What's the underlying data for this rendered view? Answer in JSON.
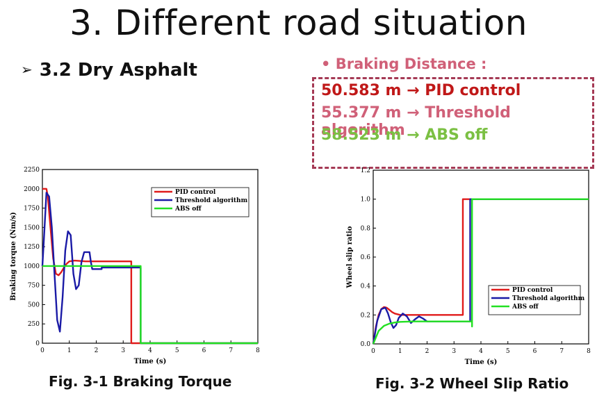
{
  "slide": {
    "title": "3. Different road situation",
    "subtitle_bullet": "➢",
    "subtitle": "3.2 Dry Asphalt",
    "braking_label": "• Braking Distance :",
    "braking": [
      {
        "value": "50.583 m",
        "arrow": "→",
        "label": "PID control"
      },
      {
        "value": "55.377 m",
        "arrow": "→",
        "label": "Threshold algorithm"
      },
      {
        "value": "58.523 m",
        "arrow": "→",
        "label": "ABS off"
      }
    ],
    "fig1_caption": "Fig. 3-1 Braking Torque",
    "fig2_caption": "Fig. 3-2 Wheel Slip Ratio"
  },
  "colors": {
    "pid": "#e01b1b",
    "threshold": "#1a1aa6",
    "abs_off": "#22e022"
  },
  "chart_data": [
    {
      "type": "line",
      "xlabel": "Time (s)",
      "ylabel": "Braking torque (Nm/s)",
      "xlim": [
        0,
        8
      ],
      "ylim": [
        0,
        2250
      ],
      "xticks": [
        "0",
        "1",
        "2",
        "3",
        "4",
        "5",
        "6",
        "7",
        "8"
      ],
      "yticks": [
        "0",
        "250",
        "500",
        "750",
        "1000",
        "1250",
        "1500",
        "1750",
        "2000",
        "2250"
      ],
      "legend": "top-right",
      "series": [
        {
          "name": "PID control",
          "color": "#e01b1b",
          "x": [
            0,
            0.15,
            0.2,
            0.3,
            0.4,
            0.5,
            0.6,
            0.7,
            0.8,
            0.9,
            1.0,
            1.2,
            1.6,
            2.0,
            2.5,
            3.0,
            3.3,
            3.3,
            3.7,
            8
          ],
          "y": [
            2000,
            2000,
            1900,
            1500,
            1100,
            900,
            880,
            920,
            980,
            1030,
            1060,
            1070,
            1060,
            1060,
            1060,
            1060,
            1060,
            0,
            0,
            0
          ]
        },
        {
          "name": "Threshold algorithm",
          "color": "#1a1aa6",
          "x": [
            0,
            0.05,
            0.15,
            0.25,
            0.35,
            0.45,
            0.55,
            0.65,
            0.75,
            0.85,
            0.95,
            1.05,
            1.15,
            1.25,
            1.35,
            1.45,
            1.55,
            1.65,
            1.75,
            1.8,
            1.85,
            1.95,
            2.05,
            2.2,
            2.2,
            2.6,
            3.0,
            3.4,
            3.65,
            3.65,
            8
          ],
          "y": [
            1000,
            1300,
            1950,
            1900,
            1500,
            900,
            300,
            150,
            600,
            1200,
            1450,
            1400,
            900,
            700,
            750,
            1050,
            1180,
            1180,
            1180,
            1050,
            960,
            960,
            960,
            960,
            980,
            980,
            980,
            980,
            980,
            0,
            0
          ]
        },
        {
          "name": "ABS off",
          "color": "#22e022",
          "x": [
            0,
            3.65,
            3.65,
            8
          ],
          "y": [
            1000,
            1000,
            0,
            0
          ]
        }
      ]
    },
    {
      "type": "line",
      "xlabel": "Time (s)",
      "ylabel": "Wheel slip ratio",
      "xlim": [
        0,
        8
      ],
      "ylim": [
        0,
        1.2
      ],
      "xticks": [
        "0",
        "1",
        "2",
        "3",
        "4",
        "5",
        "6",
        "7",
        "8"
      ],
      "yticks": [
        "0.0",
        "0.2",
        "0.4",
        "0.6",
        "0.8",
        "1.0",
        "1.2"
      ],
      "legend": "bottom-right",
      "series": [
        {
          "name": "PID control",
          "color": "#e01b1b",
          "x": [
            0,
            0.1,
            0.2,
            0.3,
            0.4,
            0.5,
            0.6,
            0.7,
            0.8,
            0.9,
            1.0,
            1.3,
            2.0,
            3.33,
            3.33,
            8
          ],
          "y": [
            0,
            0.12,
            0.2,
            0.24,
            0.255,
            0.25,
            0.235,
            0.22,
            0.21,
            0.205,
            0.2,
            0.2,
            0.2,
            0.2,
            1.0,
            1.0
          ]
        },
        {
          "name": "Threshold algorithm",
          "color": "#1a1aa6",
          "x": [
            0,
            0.15,
            0.3,
            0.45,
            0.55,
            0.65,
            0.75,
            0.85,
            0.95,
            1.1,
            1.25,
            1.4,
            1.55,
            1.7,
            1.85,
            2.0,
            2.2,
            2.6,
            3.0,
            3.6,
            3.6,
            8
          ],
          "y": [
            0,
            0.16,
            0.24,
            0.25,
            0.21,
            0.15,
            0.11,
            0.13,
            0.18,
            0.21,
            0.19,
            0.145,
            0.17,
            0.19,
            0.175,
            0.155,
            0.155,
            0.155,
            0.155,
            0.155,
            1.0,
            1.0
          ]
        },
        {
          "name": "ABS off",
          "color": "#22e022",
          "x": [
            0,
            0.2,
            0.4,
            0.6,
            0.8,
            1.0,
            1.5,
            2.0,
            3.0,
            3.67,
            3.67,
            3.67,
            8
          ],
          "y": [
            0,
            0.09,
            0.125,
            0.14,
            0.148,
            0.152,
            0.155,
            0.155,
            0.155,
            0.155,
            0.12,
            1.0,
            1.0
          ]
        }
      ]
    }
  ]
}
